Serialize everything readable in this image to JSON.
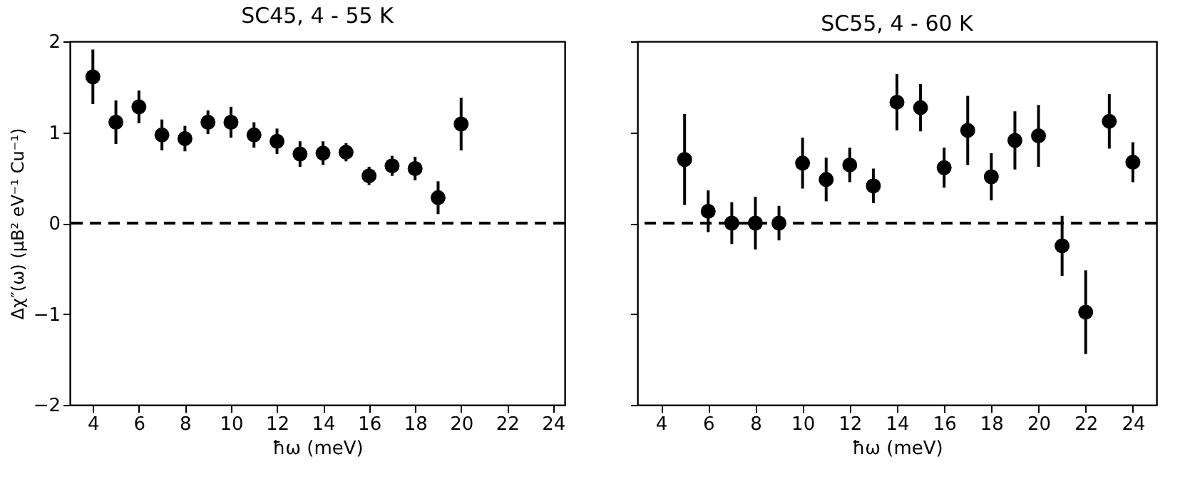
{
  "chart_data": [
    {
      "type": "scatter",
      "title": "SC45, 4 - 55 K",
      "xlabel": "ħω (meV)",
      "ylabel": "Δχ″(ω) (μB² eV⁻¹ Cu⁻¹)",
      "x": [
        4,
        5,
        6,
        7,
        8,
        9,
        10,
        11,
        12,
        13,
        14,
        15,
        16,
        17,
        18,
        19,
        20
      ],
      "series": [
        {
          "color": "#000000",
          "values": [
            1.61,
            1.11,
            1.28,
            0.97,
            0.93,
            1.11,
            1.11,
            0.97,
            0.9,
            0.76,
            0.77,
            0.78,
            0.52,
            0.63,
            0.6,
            0.28,
            1.09
          ],
          "errors": [
            0.3,
            0.24,
            0.18,
            0.17,
            0.14,
            0.13,
            0.17,
            0.14,
            0.14,
            0.14,
            0.13,
            0.1,
            0.1,
            0.11,
            0.13,
            0.18,
            0.29
          ]
        }
      ],
      "marker": "circle",
      "xlim": [
        3,
        24.5
      ],
      "xticks": [
        4,
        6,
        8,
        10,
        12,
        14,
        16,
        18,
        20,
        22,
        24
      ],
      "ylim": [
        -2,
        2
      ],
      "yticks": [
        -2,
        -1,
        0,
        1,
        2
      ],
      "ref_lines": [
        {
          "axis": "y",
          "value": 0,
          "line_style": "dashed",
          "color": "#000000"
        }
      ]
    },
    {
      "type": "scatter",
      "title": "SC55, 4 - 60 K",
      "xlabel": "ħω (meV)",
      "x": [
        5,
        6,
        7,
        8,
        9,
        10,
        11,
        12,
        13,
        14,
        15,
        16,
        17,
        18,
        19,
        20,
        21,
        22,
        23,
        24
      ],
      "series": [
        {
          "color": "#000000",
          "values": [
            0.7,
            0.13,
            0.0,
            0.0,
            0.0,
            0.66,
            0.48,
            0.64,
            0.41,
            1.33,
            1.27,
            0.61,
            1.02,
            0.51,
            0.91,
            0.96,
            -0.25,
            -0.98,
            1.12,
            0.67
          ],
          "errors": [
            0.5,
            0.23,
            0.23,
            0.29,
            0.19,
            0.28,
            0.24,
            0.19,
            0.19,
            0.31,
            0.26,
            0.22,
            0.38,
            0.26,
            0.32,
            0.34,
            0.33,
            0.46,
            0.3,
            0.22
          ]
        }
      ],
      "marker": "circle",
      "xlim": [
        3,
        25
      ],
      "xticks": [
        4,
        6,
        8,
        10,
        12,
        14,
        16,
        18,
        20,
        22,
        24
      ],
      "ylim": [
        -2,
        2
      ],
      "yticks": [
        -2,
        -1,
        0,
        1,
        2
      ],
      "ref_lines": [
        {
          "axis": "y",
          "value": 0,
          "line_style": "dashed",
          "color": "#000000"
        }
      ],
      "tick_labels": "x"
    }
  ]
}
